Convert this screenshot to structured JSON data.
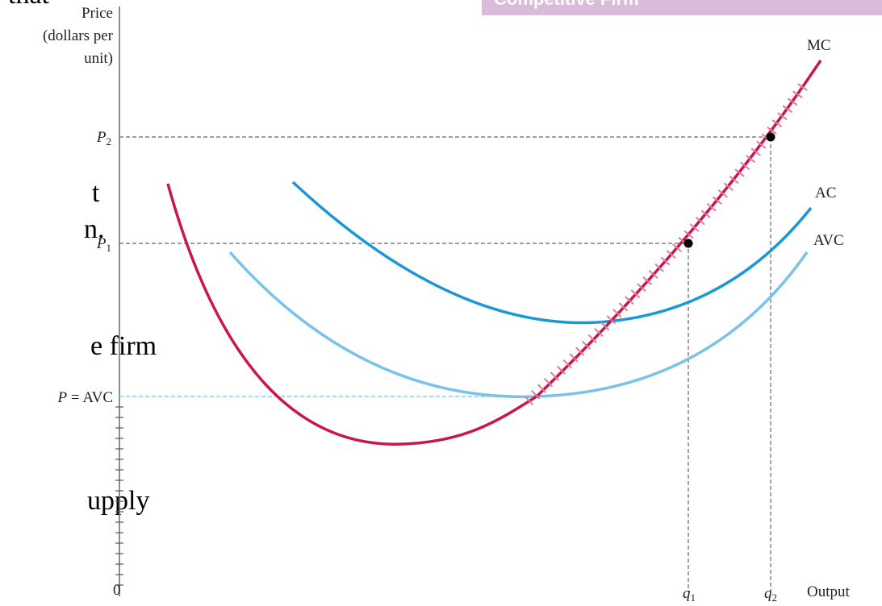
{
  "header": {
    "title": "Competitive Firm"
  },
  "side_text": [
    "that",
    "t",
    "n.",
    "e firm",
    "upply"
  ],
  "y_axis": {
    "label": [
      "Price",
      "(dollars per",
      "unit)"
    ],
    "levels": [
      {
        "letter": "P",
        "sub": "2"
      },
      {
        "letter": "P",
        "sub": "1"
      },
      {
        "letter": "P",
        "rest": " = AVC"
      }
    ]
  },
  "x_axis": {
    "origin": "0",
    "points": [
      {
        "letter": "q",
        "sub": "1"
      },
      {
        "letter": "q",
        "sub": "2"
      }
    ],
    "label": "Output"
  },
  "curves": [
    {
      "label": "MC"
    },
    {
      "label": "AC"
    },
    {
      "label": "AVC"
    }
  ]
}
